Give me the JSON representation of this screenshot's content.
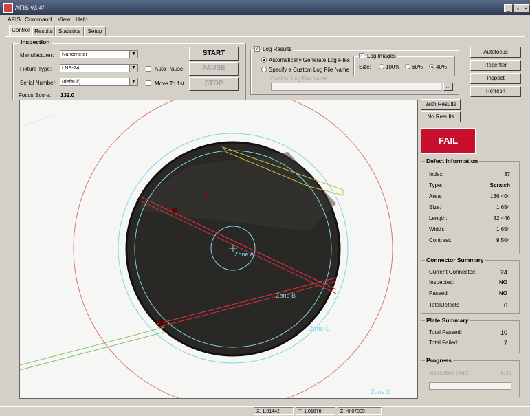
{
  "window": {
    "title": "AFIS v3.4f",
    "minimize_label": "_",
    "maximize_label": "▫",
    "close_label": "×"
  },
  "menu": [
    "AFIS",
    "Command",
    "View",
    "Help"
  ],
  "tabs": [
    "Control",
    "Results",
    "Statistics",
    "Setup"
  ],
  "inspection": {
    "group_label": "Inspection",
    "manufacturer_label": "Manufacturer:",
    "manufacturer_value": "Nanometer",
    "fixture_label": "Fixture Type:",
    "fixture_value": "LNB-24",
    "serial_label": "Serial Number:",
    "serial_value": "(default)",
    "focus_label": "Focus Score:",
    "focus_value": "132.0",
    "auto_pause_label": "Auto Pause",
    "move_to_1st_label": "Move To 1st"
  },
  "controls": {
    "start": "START",
    "pause": "PAUSE",
    "stop": "STOP"
  },
  "log": {
    "log_results_label": "Log Results",
    "log_results_checked": "✓",
    "auto_generate_label": "Automatically Generate Log Files",
    "custom_label": "Specify a Custom Log File Name",
    "custom_name_label": "Custom Log File Name:",
    "browse_label": "...",
    "log_images_label": "Log Images",
    "log_images_checked": "✓",
    "size_label": "Size:",
    "size_options": [
      "100%",
      "60%",
      "40%"
    ]
  },
  "right_buttons": [
    "Autofocus",
    "Recenter",
    "Inspect",
    "Refresh"
  ],
  "results_buttons": [
    "With Results",
    "No Results"
  ],
  "status": {
    "text": "FAIL",
    "color": "#c8102e"
  },
  "defect": {
    "title": "Defect Information",
    "rows": [
      {
        "label": "Index:",
        "value": "37"
      },
      {
        "label": "Type:",
        "value": "Scratch"
      },
      {
        "label": "Area:",
        "value": "136.404"
      },
      {
        "label": "Size:",
        "value": "1.654"
      },
      {
        "label": "Length:",
        "value": "82.446"
      },
      {
        "label": "Width:",
        "value": "1.654"
      },
      {
        "label": "Contrast:",
        "value": "9.504"
      }
    ]
  },
  "connector": {
    "title": "Connector Summary",
    "rows": [
      {
        "label": "Current Connector:",
        "value": "24"
      },
      {
        "label": "Inspected:",
        "value": "NO"
      },
      {
        "label": "Passed:",
        "value": "NO"
      },
      {
        "label": "TotalDefects",
        "value": "0"
      }
    ]
  },
  "plate": {
    "title": "Plate Summary",
    "rows": [
      {
        "label": "Total Passed:",
        "value": "10"
      },
      {
        "label": "Total Failed:",
        "value": "7"
      }
    ]
  },
  "progress": {
    "title": "Progress",
    "time_label": "Inspection Time:",
    "time_value": "6:36",
    "fraction": 0.0
  },
  "zones": {
    "a": "Zone A",
    "b": "Zone B",
    "c": "Zone C",
    "d": "Zone D"
  },
  "statusbar": {
    "x": "X: 1.01442",
    "y": "Y: 1.01676",
    "z": "Z: -0.07005"
  },
  "colors": {
    "zone_ring": "#7fd6e8",
    "outer_ring": "#e07080",
    "scratch": "#d03040",
    "edge_defect": "#c8c040"
  }
}
